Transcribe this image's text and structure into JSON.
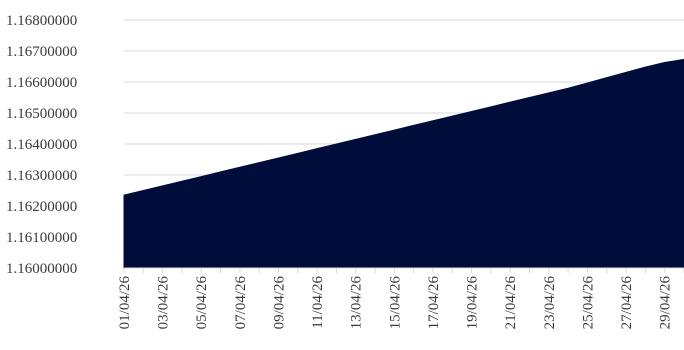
{
  "chart_data": {
    "type": "area",
    "title": "",
    "xlabel": "",
    "ylabel": "",
    "grid": true,
    "legend": "none",
    "color": "#000d3b",
    "ylim": [
      1.16,
      1.168
    ],
    "y_ticks": [
      "1.16000000",
      "1.16100000",
      "1.16200000",
      "1.16300000",
      "1.16400000",
      "1.16500000",
      "1.16600000",
      "1.16700000",
      "1.16800000"
    ],
    "x_tick_labels": [
      "01/04/26",
      "03/04/26",
      "05/04/26",
      "07/04/26",
      "09/04/26",
      "11/04/26",
      "13/04/26",
      "15/04/26",
      "17/04/26",
      "19/04/26",
      "21/04/26",
      "23/04/26",
      "25/04/26",
      "27/04/26",
      "29/04/26"
    ],
    "x": [
      "01/04/26",
      "02/04/26",
      "03/04/26",
      "04/04/26",
      "05/04/26",
      "06/04/26",
      "07/04/26",
      "08/04/26",
      "09/04/26",
      "10/04/26",
      "11/04/26",
      "12/04/26",
      "13/04/26",
      "14/04/26",
      "15/04/26",
      "16/04/26",
      "17/04/26",
      "18/04/26",
      "19/04/26",
      "20/04/26",
      "21/04/26",
      "22/04/26",
      "23/04/26",
      "24/04/26",
      "25/04/26",
      "26/04/26",
      "27/04/26",
      "28/04/26",
      "29/04/26",
      "30/04/26"
    ],
    "values": [
      1.16235,
      1.1625,
      1.16265,
      1.1628,
      1.16295,
      1.1631,
      1.16325,
      1.1634,
      1.16355,
      1.1637,
      1.16385,
      1.164,
      1.16415,
      1.1643,
      1.16445,
      1.1646,
      1.16475,
      1.1649,
      1.16505,
      1.1652,
      1.16535,
      1.1655,
      1.16565,
      1.1658,
      1.16597,
      1.16614,
      1.16631,
      1.16648,
      1.16663,
      1.16673
    ]
  }
}
